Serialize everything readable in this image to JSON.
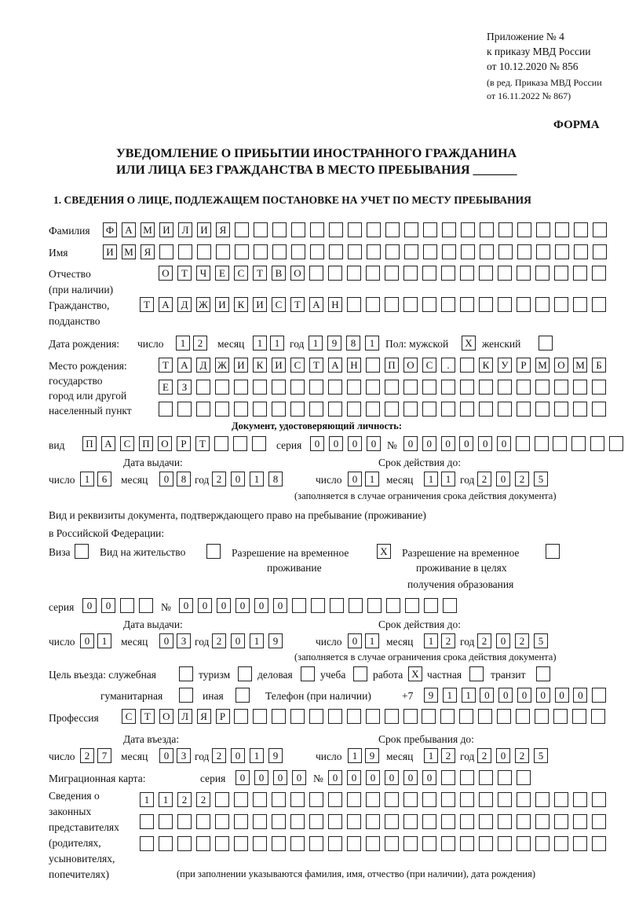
{
  "header": {
    "appendix": "Приложение № 4",
    "order": "к приказу МВД России",
    "order_date": "от 10.12.2020 № 856",
    "edition1": "(в ред. Приказа МВД России",
    "edition2": "от 16.11.2022 № 867)",
    "form": "ФОРМА",
    "title1": "УВЕДОМЛЕНИЕ О ПРИБЫТИИ ИНОСТРАННОГО ГРАЖДАНИНА",
    "title2": "ИЛИ ЛИЦА БЕЗ ГРАЖДАНСТВА В МЕСТО ПРЕБЫВАНИЯ _______",
    "section1": "1. СВЕДЕНИЯ О ЛИЦЕ, ПОДЛЕЖАЩЕМ ПОСТАНОВКЕ НА УЧЕТ ПО МЕСТУ ПРЕБЫВАНИЯ"
  },
  "labels": {
    "surname": "Фамилия",
    "name": "Имя",
    "patronymic": "Отчество",
    "patronymic2": "(при наличии)",
    "citizenship": "Гражданство,",
    "citizenship2": "подданство",
    "birth_date": "Дата рождения:",
    "day": "число",
    "month": "месяц",
    "year": "год",
    "sex": "Пол: мужской",
    "female": "женский",
    "birthplace1": "Место рождения:",
    "birthplace2": "государство",
    "birthplace3": "город или другой",
    "birthplace4": "населенный пункт",
    "id_doc": "Документ, удостоверяющий личность:",
    "kind": "вид",
    "series": "серия",
    "number": "№",
    "issue_date": "Дата выдачи:",
    "valid_until": "Срок действия до:",
    "validity_note": "(заполняется в случае ограничения срока действия документа)",
    "stay_doc1": "Вид и реквизиты документа, подтверждающего право на пребывание (проживание)",
    "stay_doc2": "в Российской Федерации:",
    "visa": "Виза",
    "residence": "Вид на жительство",
    "trp1": "Разрешение на временное",
    "trp2": "проживание",
    "trpe1": "Разрешение на временное",
    "trpe2": "проживание в целях",
    "trpe3": "получения образования",
    "purpose": "Цель въезда: служебная",
    "tourism": "туризм",
    "business": "деловая",
    "study": "учеба",
    "work": "работа",
    "private": "частная",
    "transit": "транзит",
    "humanitarian": "гуманитарная",
    "other": "иная",
    "phone": "Телефон (при наличии)",
    "phone_prefix": "+7",
    "profession": "Профессия",
    "entry_date": "Дата въезда:",
    "stay_until": "Срок пребывания до:",
    "migration_card": "Миграционная карта:",
    "reps1": "Сведения о",
    "reps2": "законных",
    "reps3": "представителях",
    "reps4": "(родителях,",
    "reps5": "усыновителях,",
    "reps6": "попечителях)",
    "reps_note": "(при заполнении указываются фамилия, имя, отчество (при наличии), дата рождения)"
  },
  "values": {
    "surname": [
      "Ф",
      "А",
      "М",
      "И",
      "Л",
      "И",
      "Я"
    ],
    "name": [
      "И",
      "М",
      "Я"
    ],
    "patronymic": [
      "О",
      "Т",
      "Ч",
      "Е",
      "С",
      "Т",
      "В",
      "О"
    ],
    "citizenship": [
      "Т",
      "А",
      "Д",
      "Ж",
      "И",
      "К",
      "И",
      "С",
      "Т",
      "А",
      "Н"
    ],
    "birth_day": [
      "1",
      "2"
    ],
    "birth_month": [
      "1",
      "1"
    ],
    "birth_year": [
      "1",
      "9",
      "8",
      "1"
    ],
    "sex_male": "X",
    "sex_female": "",
    "birthplace1": [
      "Т",
      "А",
      "Д",
      "Ж",
      "И",
      "К",
      "И",
      "С",
      "Т",
      "А",
      "Н",
      "",
      "П",
      "О",
      "С",
      ".",
      "",
      "К",
      "У",
      "Р",
      "М",
      "О",
      "М",
      "Б"
    ],
    "birthplace2": [
      "Е",
      "З"
    ],
    "birthplace3": [],
    "doc_kind": [
      "П",
      "А",
      "С",
      "П",
      "О",
      "Р",
      "Т"
    ],
    "doc_series": [
      "0",
      "0",
      "0",
      "0"
    ],
    "doc_number": [
      "0",
      "0",
      "0",
      "0",
      "0",
      "0"
    ],
    "doc_issue_day": [
      "1",
      "6"
    ],
    "doc_issue_month": [
      "0",
      "8"
    ],
    "doc_issue_year": [
      "2",
      "0",
      "1",
      "8"
    ],
    "doc_valid_day": [
      "0",
      "1"
    ],
    "doc_valid_month": [
      "1",
      "1"
    ],
    "doc_valid_year": [
      "2",
      "0",
      "2",
      "5"
    ],
    "visa": "",
    "residence": "",
    "trp": "X",
    "trpe": "",
    "stay_series": [
      "0",
      "0"
    ],
    "stay_number": [
      "0",
      "0",
      "0",
      "0",
      "0",
      "0"
    ],
    "stay_issue_day": [
      "0",
      "1"
    ],
    "stay_issue_month": [
      "0",
      "3"
    ],
    "stay_issue_year": [
      "2",
      "0",
      "1",
      "9"
    ],
    "stay_valid_day": [
      "0",
      "1"
    ],
    "stay_valid_month": [
      "1",
      "2"
    ],
    "stay_valid_year": [
      "2",
      "0",
      "2",
      "5"
    ],
    "purpose_service": "",
    "purpose_tourism": "",
    "purpose_business": "",
    "purpose_study": "",
    "purpose_work": "X",
    "purpose_private": "",
    "purpose_transit": "",
    "purpose_humanitarian": "",
    "purpose_other": "",
    "phone": [
      "9",
      "1",
      "1",
      "0",
      "0",
      "0",
      "0",
      "0",
      "0"
    ],
    "profession": [
      "С",
      "Т",
      "О",
      "Л",
      "Я",
      "Р"
    ],
    "entry_day": [
      "2",
      "7"
    ],
    "entry_month": [
      "0",
      "3"
    ],
    "entry_year": [
      "2",
      "0",
      "1",
      "9"
    ],
    "stay_until_day": [
      "1",
      "9"
    ],
    "stay_until_month": [
      "1",
      "2"
    ],
    "stay_until_year": [
      "2",
      "0",
      "2",
      "5"
    ],
    "mc_series": [
      "0",
      "0",
      "0",
      "0"
    ],
    "mc_number": [
      "0",
      "0",
      "0",
      "0",
      "0",
      "0"
    ],
    "reps1": [
      "1",
      "1",
      "2",
      "2"
    ],
    "reps2": [],
    "reps3": []
  }
}
